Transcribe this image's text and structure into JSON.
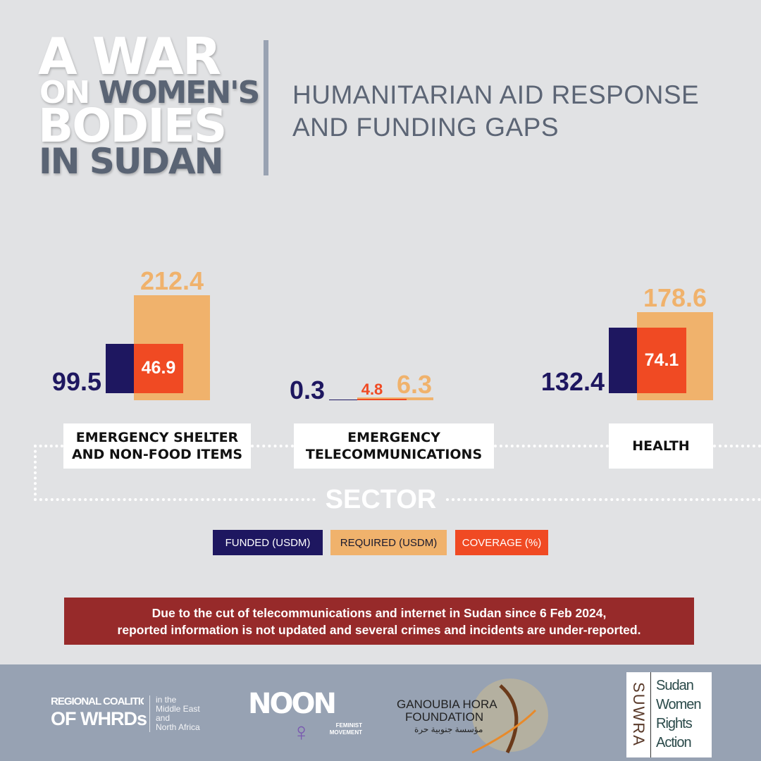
{
  "header": {
    "title_lines": [
      [
        "A WAR"
      ],
      [
        "ON",
        "WOMEN'S"
      ],
      [
        "BODIES"
      ],
      [
        "IN SUDAN"
      ]
    ],
    "subtitle_line1": "HUMANITARIAN AID RESPONSE",
    "subtitle_line2": "AND FUNDING GAPS"
  },
  "chart_data": {
    "type": "bar",
    "title": "Humanitarian Aid Response and Funding Gaps",
    "xlabel": "SECTOR",
    "categories": [
      "EMERGENCY SHELTER AND NON-FOOD ITEMS",
      "EMERGENCY TELECOMMUNICATIONS",
      "HEALTH"
    ],
    "series": [
      {
        "name": "FUNDED (USDM)",
        "color": "#1e1760",
        "values": [
          99.5,
          0.3,
          132.4
        ]
      },
      {
        "name": "REQUIRED (USDM)",
        "color": "#f0b26c",
        "values": [
          212.4,
          6.3,
          178.6
        ]
      },
      {
        "name": "COVERAGE (%)",
        "color": "#f04a23",
        "values": [
          46.9,
          4.8,
          74.1
        ]
      }
    ],
    "labels": {
      "funded": [
        "99.5",
        "0.3",
        "132.4"
      ],
      "required": [
        "212.4",
        "6.3",
        "178.6"
      ],
      "coverage": [
        "46.9",
        "4.8",
        "74.1"
      ]
    },
    "sector_labels": [
      [
        "EMERGENCY SHELTER",
        "AND NON-FOOD ITEMS"
      ],
      [
        "EMERGENCY",
        "TELECOMMUNICATIONS"
      ],
      [
        "HEALTH"
      ]
    ],
    "legend": [
      "FUNDED (USDM)",
      "REQUIRED (USDM)",
      "COVERAGE (%)"
    ]
  },
  "note": {
    "line1": "Due to the cut of telecommunications and internet in Sudan since 6 Feb 2024,",
    "line2": "reported information is not updated and several crimes and incidents are under-reported."
  },
  "footer": {
    "whrd": {
      "line1": "REGIONAL COALITION",
      "line2": "OF WHRDs",
      "side": [
        "in the",
        "Middle East",
        "and",
        "North Africa"
      ]
    },
    "noon": {
      "name": "NOON",
      "sub1": "FEMINIST",
      "sub2": "MOVEMENT"
    },
    "ganoubia": {
      "line1": "GANOUBIA HORA",
      "line2": "FOUNDATION",
      "arabic": "مؤسسة جنوبية حرة"
    },
    "suwra": {
      "vertical": "SUWRA",
      "lines": [
        "Sudan",
        "Women",
        "Rights",
        "Action"
      ]
    }
  }
}
